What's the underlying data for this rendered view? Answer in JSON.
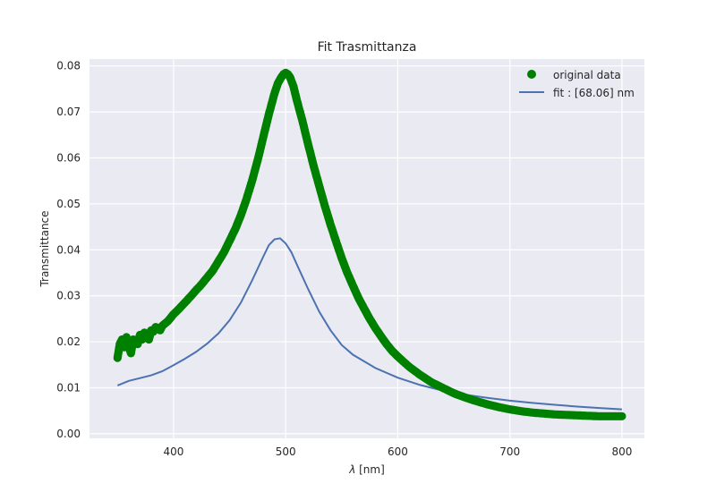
{
  "chart_data": {
    "type": "scatter",
    "title": "Fit Trasmittanza",
    "xlabel_symbol": "λ",
    "xlabel_unit": " [nm]",
    "ylabel": "Transmittance",
    "xlim": [
      325,
      820
    ],
    "ylim": [
      -0.001,
      0.0815
    ],
    "xticks": [
      400,
      500,
      600,
      700,
      800
    ],
    "yticks": [
      0.0,
      0.01,
      0.02,
      0.03,
      0.04,
      0.05,
      0.06,
      0.07,
      0.08
    ],
    "ytick_labels": [
      "0.00",
      "0.01",
      "0.02",
      "0.03",
      "0.04",
      "0.05",
      "0.06",
      "0.07",
      "0.08"
    ],
    "grid": true,
    "legend_position": "top-right",
    "colors": {
      "data": "#008000",
      "fit": "#4c72b0",
      "plot_bg": "#eaeaf2",
      "grid": "#ffffff"
    },
    "series": [
      {
        "name": "original data",
        "kind": "markers",
        "x": [
          350,
          352,
          354,
          356,
          358,
          360,
          362,
          364,
          366,
          368,
          370,
          372,
          374,
          376,
          378,
          380,
          382,
          384,
          386,
          388,
          390,
          395,
          400,
          405,
          410,
          415,
          420,
          425,
          430,
          435,
          440,
          445,
          450,
          455,
          460,
          465,
          470,
          475,
          480,
          485,
          490,
          493,
          496,
          498,
          500,
          502,
          504,
          507,
          510,
          515,
          520,
          525,
          530,
          535,
          540,
          545,
          550,
          555,
          560,
          565,
          570,
          575,
          580,
          585,
          590,
          595,
          600,
          610,
          620,
          630,
          640,
          650,
          660,
          670,
          680,
          690,
          700,
          710,
          720,
          730,
          740,
          750,
          760,
          770,
          780,
          790,
          800
        ],
        "y": [
          0.0165,
          0.0195,
          0.0205,
          0.0188,
          0.021,
          0.019,
          0.0175,
          0.0205,
          0.02,
          0.0195,
          0.0215,
          0.0205,
          0.022,
          0.0215,
          0.0205,
          0.0225,
          0.0222,
          0.0232,
          0.023,
          0.0225,
          0.0235,
          0.0245,
          0.026,
          0.0272,
          0.0285,
          0.0298,
          0.0312,
          0.0325,
          0.034,
          0.0355,
          0.0375,
          0.0395,
          0.042,
          0.0445,
          0.0475,
          0.051,
          0.055,
          0.0595,
          0.0645,
          0.0695,
          0.074,
          0.0762,
          0.0775,
          0.0782,
          0.0785,
          0.0782,
          0.0775,
          0.0755,
          0.0725,
          0.068,
          0.063,
          0.0582,
          0.0538,
          0.0495,
          0.0455,
          0.0418,
          0.0382,
          0.035,
          0.0322,
          0.0295,
          0.0272,
          0.025,
          0.023,
          0.0212,
          0.0195,
          0.018,
          0.0168,
          0.0146,
          0.0128,
          0.0112,
          0.01,
          0.0088,
          0.0079,
          0.0071,
          0.0064,
          0.0058,
          0.0053,
          0.0049,
          0.0046,
          0.0044,
          0.0042,
          0.0041,
          0.004,
          0.0039,
          0.0038,
          0.0038,
          0.0038
        ]
      },
      {
        "name": "fit : [68.06] nm",
        "kind": "line",
        "x": [
          350,
          360,
          370,
          380,
          390,
          400,
          410,
          420,
          430,
          440,
          450,
          460,
          470,
          480,
          485,
          490,
          495,
          500,
          505,
          510,
          520,
          530,
          540,
          550,
          560,
          580,
          600,
          620,
          640,
          660,
          680,
          700,
          720,
          740,
          760,
          780,
          800
        ],
        "y": [
          0.0105,
          0.0115,
          0.0121,
          0.0127,
          0.0136,
          0.0149,
          0.0163,
          0.0178,
          0.0196,
          0.0218,
          0.0247,
          0.0285,
          0.0333,
          0.0385,
          0.041,
          0.0423,
          0.0425,
          0.0414,
          0.0395,
          0.0368,
          0.0315,
          0.0265,
          0.0225,
          0.0193,
          0.0172,
          0.0143,
          0.0122,
          0.0106,
          0.0094,
          0.0085,
          0.0078,
          0.0072,
          0.0067,
          0.0063,
          0.0059,
          0.0056,
          0.0053
        ]
      }
    ]
  }
}
